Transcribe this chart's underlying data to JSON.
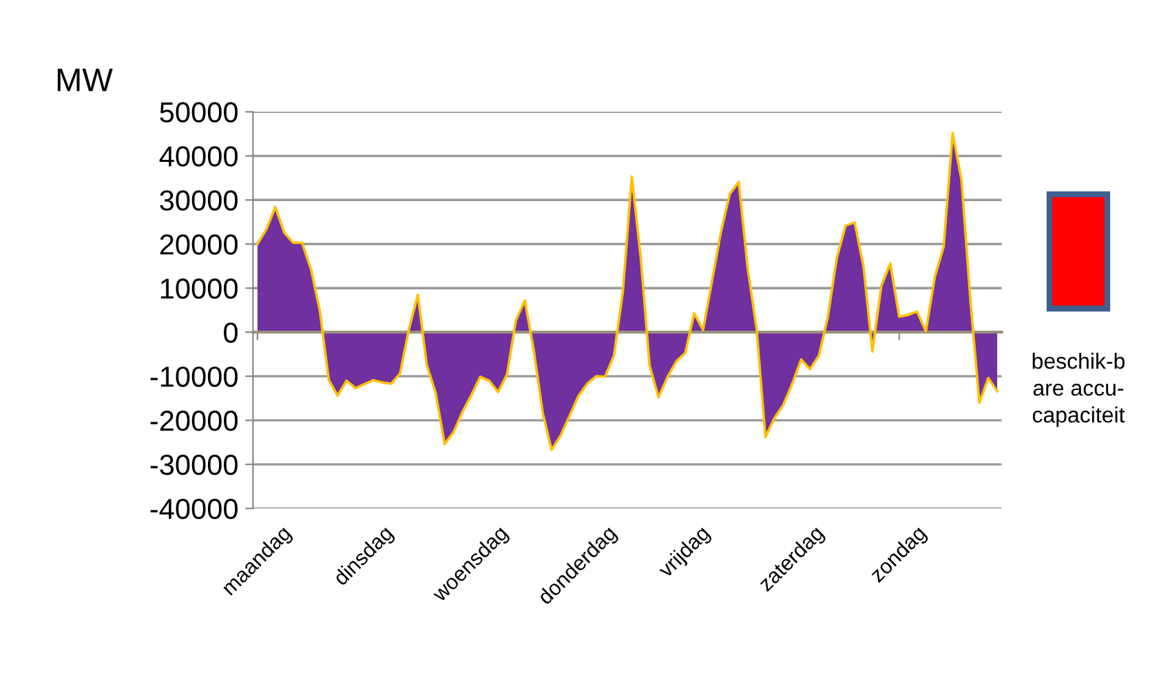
{
  "chart_data": {
    "type": "area",
    "ylabel": "MW",
    "categories": [
      "maandag",
      null,
      null,
      null,
      null,
      null,
      null,
      null,
      null,
      null,
      null,
      null,
      "dinsdag",
      null,
      null,
      null,
      null,
      null,
      null,
      null,
      null,
      null,
      null,
      null,
      "woensdag",
      null,
      null,
      null,
      null,
      null,
      null,
      null,
      null,
      null,
      null,
      null,
      "donderdag",
      null,
      null,
      null,
      null,
      null,
      null,
      null,
      null,
      null,
      null,
      null,
      "vrijdag",
      null,
      null,
      null,
      null,
      null,
      null,
      null,
      null,
      null,
      null,
      null,
      "zaterdag",
      null,
      null,
      null,
      null,
      null,
      null,
      null,
      null,
      null,
      null,
      null,
      "zondag",
      null,
      null,
      null,
      null,
      null,
      null,
      null,
      null,
      null,
      null,
      null
    ],
    "series": [
      {
        "color": "#7030a0",
        "values": [
          20000,
          23300,
          28400,
          22600,
          20300,
          20300,
          14300,
          4900,
          -10800,
          -14400,
          -11000,
          -12700,
          -11800,
          -10900,
          -11400,
          -11700,
          -9400,
          700,
          8500,
          -7500,
          -13800,
          -25400,
          -22700,
          -18100,
          -14300,
          -10100,
          -11000,
          -13600,
          -9600,
          2700,
          7200,
          -4100,
          -18200,
          -26700,
          -23500,
          -19100,
          -14500,
          -11700,
          -10000,
          -10100,
          -5300,
          9200,
          35300,
          17000,
          -7600,
          -14800,
          -10200,
          -6600,
          -4700,
          4300,
          500,
          11600,
          22700,
          31400,
          34100,
          14600,
          800,
          -23800,
          -19500,
          -16500,
          -11700,
          -6200,
          -8400,
          -5300,
          3500,
          16800,
          24200,
          24900,
          14900,
          -4400,
          10500,
          15600,
          3500,
          3900,
          4700,
          200,
          12500,
          19500,
          45200,
          34500,
          7100,
          -16000,
          -10400,
          -13400
        ]
      }
    ],
    "ylim": [
      -40000,
      50000
    ],
    "yticks": [
      -40000,
      -30000,
      -20000,
      -10000,
      0,
      10000,
      20000,
      30000,
      40000,
      50000
    ],
    "grid": "y",
    "annotations": [
      "beschik-b\nare accu-\ncapaciteit"
    ]
  }
}
